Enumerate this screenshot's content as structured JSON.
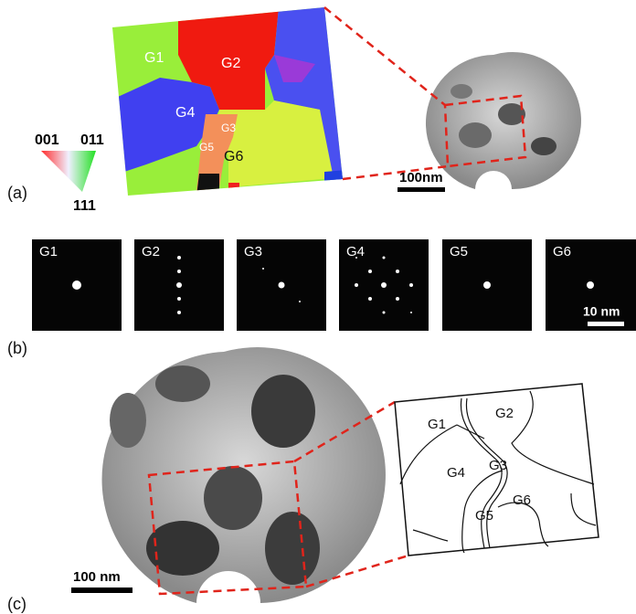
{
  "panel_a": {
    "label": "(a)",
    "grains": [
      "G1",
      "G2",
      "G3",
      "G4",
      "G5",
      "G6"
    ],
    "ipf_key": [
      "001",
      "011",
      "111"
    ],
    "scale_bar": "100nm"
  },
  "panel_b": {
    "label": "(b)",
    "patterns": [
      "G1",
      "G2",
      "G3",
      "G4",
      "G5",
      "G6"
    ],
    "scale_bar": "10 nm"
  },
  "panel_c": {
    "label": "(c)",
    "scale_bar": "100 nm",
    "grains": [
      "G1",
      "G2",
      "G3",
      "G4",
      "G5",
      "G6"
    ]
  }
}
